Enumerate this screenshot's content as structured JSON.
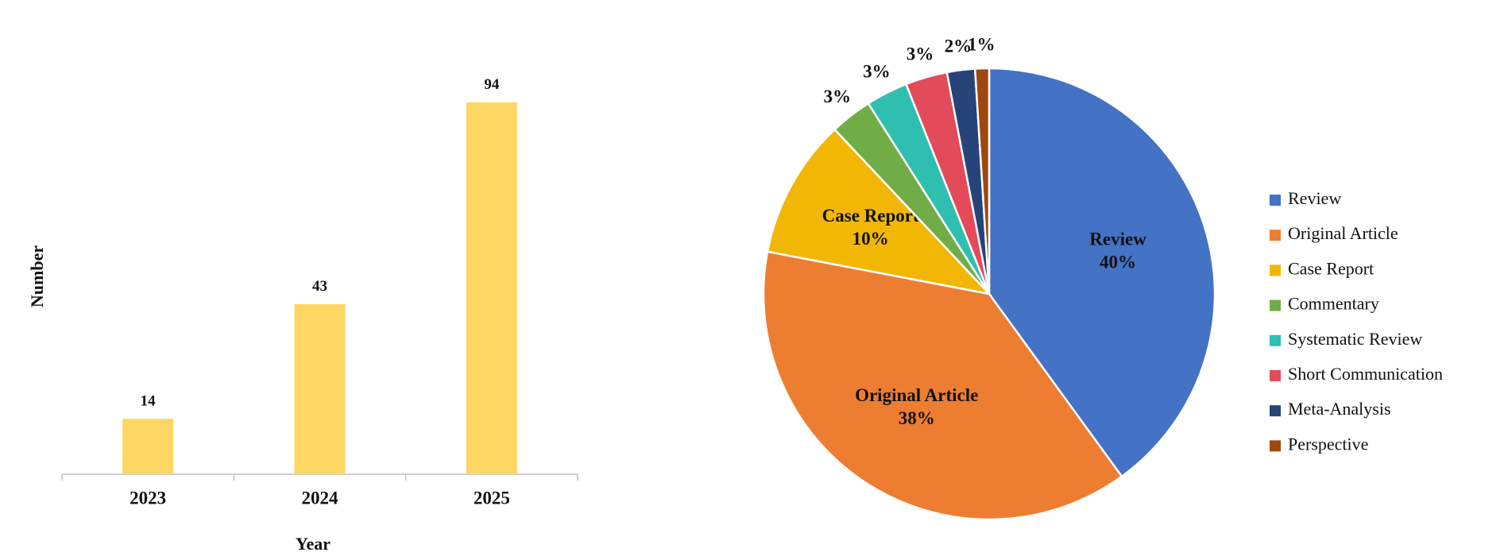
{
  "chart_data": [
    {
      "type": "bar",
      "x_label": "Year",
      "y_label": "Number",
      "categories": [
        "2023",
        "2024",
        "2025"
      ],
      "values": [
        14,
        43,
        94
      ],
      "color": "#fdd663",
      "ylim": [
        0,
        100
      ]
    },
    {
      "type": "pie",
      "categories": [
        "Review",
        "Original Article",
        "Case Report",
        "Commentary",
        "Systematic Review",
        "Short Communication",
        "Meta-Analysis",
        "Perspective"
      ],
      "values": [
        40,
        38,
        10,
        3,
        3,
        3,
        2,
        1
      ],
      "value_labels": [
        "40%",
        "38%",
        "10%",
        "3%",
        "3%",
        "3%",
        "2%",
        "1%"
      ],
      "colors": [
        "#4472c4",
        "#ed7d31",
        "#f2b705",
        "#70ad47",
        "#2fbfb0",
        "#e34a5a",
        "#264478",
        "#9e480e"
      ],
      "legend": "right"
    }
  ]
}
